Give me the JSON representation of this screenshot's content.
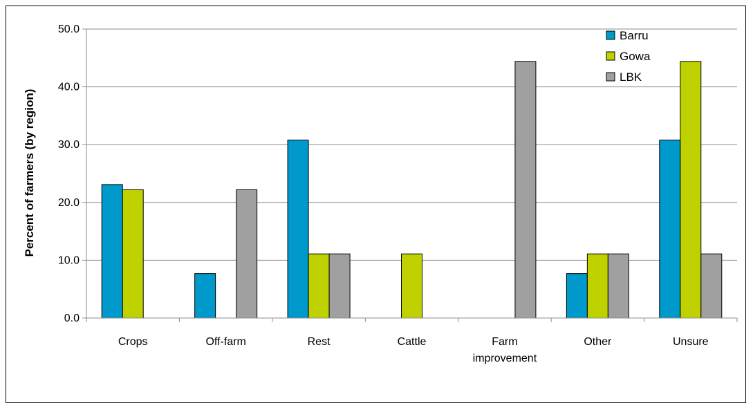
{
  "chart_data": {
    "type": "bar",
    "categories": [
      [
        "Crops"
      ],
      [
        "Off-farm"
      ],
      [
        "Rest"
      ],
      [
        "Cattle"
      ],
      [
        "Farm",
        "improvement"
      ],
      [
        "Other"
      ],
      [
        "Unsure"
      ]
    ],
    "series": [
      {
        "name": "Barru",
        "color": "#0099CC",
        "values": [
          23.1,
          7.7,
          30.8,
          0.0,
          0.0,
          7.7,
          30.8
        ]
      },
      {
        "name": "Gowa",
        "color": "#BFD200",
        "values": [
          22.2,
          0.0,
          11.1,
          11.1,
          0.0,
          11.1,
          44.4
        ]
      },
      {
        "name": "LBK",
        "color": "#A0A0A0",
        "values": [
          0.0,
          22.2,
          11.1,
          0.0,
          44.4,
          11.1,
          11.1
        ]
      }
    ],
    "ylabel": "Percent of farmers (by region)",
    "xlabel": "",
    "ylim": [
      0,
      50
    ],
    "yticks": [
      "0.0",
      "10.0",
      "20.0",
      "30.0",
      "40.0",
      "50.0"
    ],
    "grid": true,
    "legend_position": "top-right"
  }
}
